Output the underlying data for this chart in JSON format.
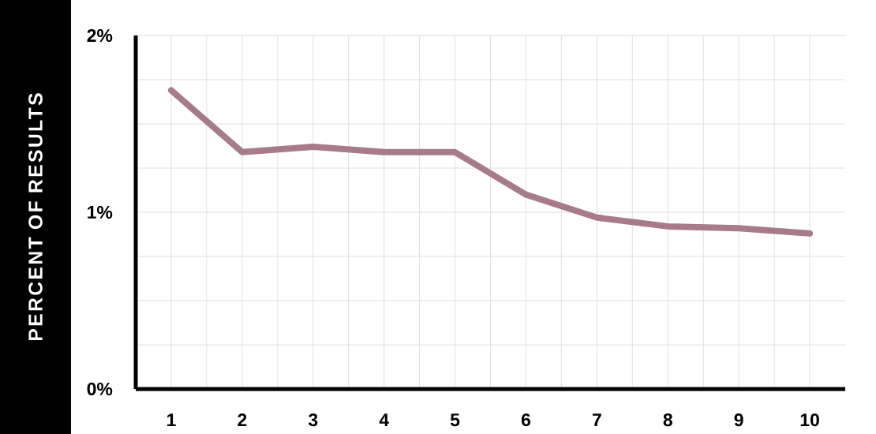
{
  "chart_data": {
    "type": "line",
    "ylabel": "PERCENT OF RESULTS",
    "x": [
      1,
      2,
      3,
      4,
      5,
      6,
      7,
      8,
      9,
      10
    ],
    "values": [
      1.69,
      1.34,
      1.37,
      1.34,
      1.34,
      1.1,
      0.97,
      0.92,
      0.91,
      0.88
    ],
    "color": "#a87b89",
    "xlim": [
      0.5,
      10.5
    ],
    "xticks": [
      1,
      {
        "value": 1.5,
        "label": null
      },
      2,
      {
        "value": 2.5,
        "label": null
      },
      3,
      {
        "value": 3.5,
        "label": null
      },
      4,
      {
        "value": 4.5,
        "label": null
      },
      5,
      {
        "value": 5.5,
        "label": null
      },
      6,
      {
        "value": 6.5,
        "label": null
      },
      7,
      {
        "value": 7.5,
        "label": null
      },
      8,
      {
        "value": 8.5,
        "label": null
      },
      9,
      {
        "value": 9.5,
        "label": null
      },
      10
    ],
    "ylim": [
      0,
      2
    ],
    "yticks": [
      {
        "value": 0,
        "label": "0%"
      },
      {
        "value": 0.25,
        "label": null
      },
      {
        "value": 0.5,
        "label": null
      },
      {
        "value": 0.75,
        "label": null
      },
      {
        "value": 1,
        "label": "1%"
      },
      {
        "value": 1.25,
        "label": null
      },
      {
        "value": 1.5,
        "label": null
      },
      {
        "value": 1.75,
        "label": null
      },
      {
        "value": 2,
        "label": "2%"
      }
    ],
    "grid": true
  }
}
